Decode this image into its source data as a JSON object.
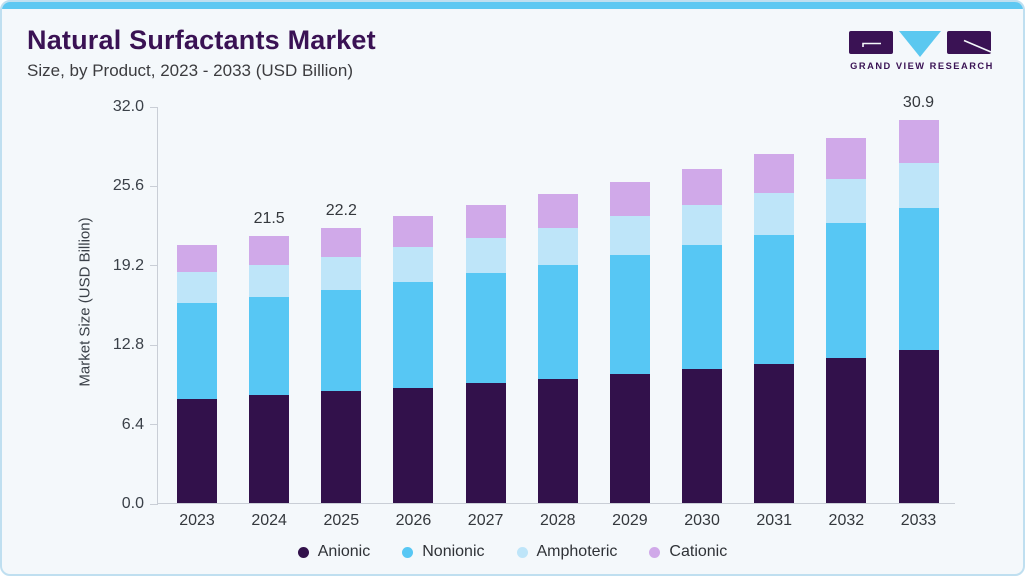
{
  "header": {
    "title": "Natural Surfactants Market",
    "subtitle": "Size, by Product, 2023 - 2033 (USD Billion)"
  },
  "logo": {
    "text": "GRAND VIEW RESEARCH"
  },
  "colors": {
    "accent_topbar": "#5EC8F2",
    "brand_purple": "#3A1254",
    "logo_triangle_blue": "#5BC8F0",
    "card_background": "#F4F8FB",
    "card_border": "#BFDFF0",
    "axis_line": "#C9CED6"
  },
  "chart_data": {
    "type": "bar",
    "stacked": true,
    "title": "Natural Surfactants Market Size, by Product, 2023 - 2033 (USD Billion)",
    "categories": [
      "2023",
      "2024",
      "2025",
      "2026",
      "2027",
      "2028",
      "2029",
      "2030",
      "2031",
      "2032",
      "2033"
    ],
    "series": [
      {
        "name": "Anionic",
        "color": "#32114B",
        "values": [
          8.4,
          8.7,
          9.0,
          9.3,
          9.7,
          10.0,
          10.4,
          10.8,
          11.2,
          11.7,
          12.3
        ]
      },
      {
        "name": "Nonionic",
        "color": "#57C7F4",
        "values": [
          7.7,
          7.9,
          8.2,
          8.5,
          8.8,
          9.2,
          9.6,
          10.0,
          10.4,
          10.9,
          11.5
        ]
      },
      {
        "name": "Amphoteric",
        "color": "#BEE5F9",
        "values": [
          2.5,
          2.6,
          2.6,
          2.8,
          2.9,
          3.0,
          3.1,
          3.2,
          3.4,
          3.5,
          3.6
        ]
      },
      {
        "name": "Cationic",
        "color": "#D0A9E9",
        "values": [
          2.2,
          2.3,
          2.4,
          2.5,
          2.6,
          2.7,
          2.8,
          2.9,
          3.1,
          3.3,
          3.5
        ]
      }
    ],
    "totals": [
      20.8,
      21.5,
      22.2,
      23.1,
      24.0,
      24.9,
      25.9,
      26.9,
      28.1,
      29.4,
      30.9
    ],
    "bar_labels": [
      "",
      "21.5",
      "22.2",
      "",
      "",
      "",
      "",
      "",
      "",
      "",
      "30.9"
    ],
    "ylabel": "Market Size (USD Billion)",
    "ytick_labels": [
      "0.0",
      "6.4",
      "12.8",
      "19.2",
      "25.6",
      "32.0"
    ],
    "ylim": [
      0,
      32
    ],
    "grid": false,
    "legend_position": "bottom"
  }
}
